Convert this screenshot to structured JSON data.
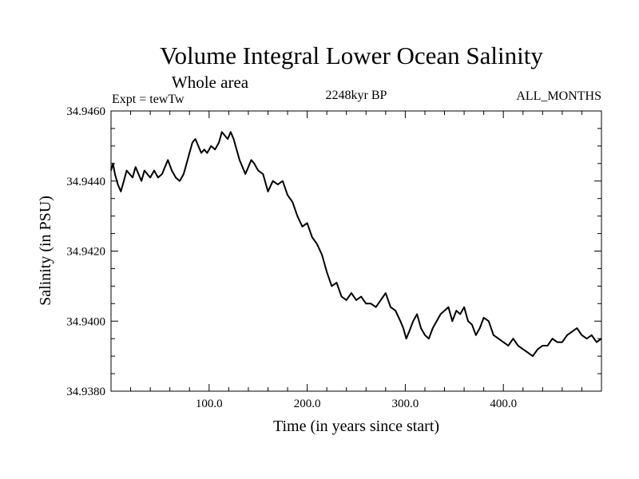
{
  "chart_data": {
    "type": "line",
    "title": "Volume Integral Lower Ocean Salinity",
    "subtitle": "Whole area",
    "header_left": "Expt = tewTw",
    "header_center": "2248kyr BP",
    "header_right": "ALL_MONTHS",
    "xlabel": "Time (in years since start)",
    "ylabel": "Salinity (in PSU)",
    "xlim": [
      0,
      500
    ],
    "ylim": [
      34.938,
      34.946
    ],
    "x_ticks": [
      {
        "value": 100,
        "label": "100.0"
      },
      {
        "value": 200,
        "label": "200.0"
      },
      {
        "value": 300,
        "label": "300.0"
      },
      {
        "value": 400,
        "label": "400.0"
      }
    ],
    "y_ticks": [
      {
        "value": 34.938,
        "label": "34.9380"
      },
      {
        "value": 34.94,
        "label": "34.9400"
      },
      {
        "value": 34.942,
        "label": "34.9420"
      },
      {
        "value": 34.944,
        "label": "34.9440"
      },
      {
        "value": 34.946,
        "label": "34.9460"
      }
    ],
    "grid": false,
    "series": [
      {
        "name": "Salinity",
        "color": "#000000",
        "x": [
          0,
          2,
          4,
          7,
          10,
          13,
          16,
          19,
          22,
          25,
          28,
          31,
          34,
          37,
          40,
          44,
          48,
          52,
          55,
          58,
          62,
          66,
          70,
          74,
          77,
          80,
          83,
          86,
          89,
          92,
          95,
          98,
          102,
          106,
          110,
          113,
          116,
          119,
          122,
          125,
          128,
          131,
          134,
          137,
          140,
          143,
          146,
          150,
          155,
          160,
          165,
          170,
          175,
          180,
          185,
          190,
          195,
          200,
          205,
          210,
          215,
          220,
          225,
          230,
          235,
          240,
          245,
          250,
          255,
          260,
          265,
          270,
          275,
          280,
          285,
          290,
          295,
          298,
          301,
          304,
          308,
          312,
          316,
          320,
          324,
          328,
          332,
          336,
          340,
          344,
          348,
          352,
          356,
          360,
          364,
          368,
          372,
          376,
          380,
          385,
          390,
          395,
          400,
          405,
          410,
          415,
          420,
          425,
          430,
          435,
          440,
          445,
          450,
          455,
          460,
          465,
          470,
          475,
          480,
          485,
          490,
          495,
          500
        ],
        "values": [
          34.9443,
          34.9445,
          34.9442,
          34.9439,
          34.9437,
          34.944,
          34.9443,
          34.9442,
          34.9441,
          34.9444,
          34.9442,
          34.944,
          34.9443,
          34.9442,
          34.9441,
          34.9443,
          34.9441,
          34.9442,
          34.9444,
          34.9446,
          34.9443,
          34.9441,
          34.944,
          34.9442,
          34.9445,
          34.9448,
          34.9451,
          34.9452,
          34.945,
          34.9448,
          34.9449,
          34.9448,
          34.945,
          34.9449,
          34.9451,
          34.9454,
          34.9453,
          34.9452,
          34.9454,
          34.9452,
          34.9449,
          34.9446,
          34.9444,
          34.9442,
          34.9444,
          34.9446,
          34.9445,
          34.9443,
          34.9442,
          34.9437,
          34.944,
          34.9439,
          34.944,
          34.9436,
          34.9434,
          34.943,
          34.9427,
          34.9428,
          34.9424,
          34.9422,
          34.9419,
          34.9414,
          34.941,
          34.9411,
          34.9407,
          34.9406,
          34.9408,
          34.9406,
          34.9407,
          34.9405,
          34.9405,
          34.9404,
          34.9406,
          34.9408,
          34.9404,
          34.9403,
          34.94,
          34.9398,
          34.9395,
          34.9397,
          34.94,
          34.9402,
          34.9398,
          34.9396,
          34.9395,
          34.9398,
          34.94,
          34.9402,
          34.9403,
          34.9404,
          34.94,
          34.9403,
          34.9402,
          34.9404,
          34.94,
          34.9399,
          34.9396,
          34.9398,
          34.9401,
          34.94,
          34.9396,
          34.9395,
          34.9394,
          34.9393,
          34.9395,
          34.9393,
          34.9392,
          34.9391,
          34.939,
          34.9392,
          34.9393,
          34.9393,
          34.9395,
          34.9394,
          34.9394,
          34.9396,
          34.9397,
          34.9398,
          34.9396,
          34.9395,
          34.9396,
          34.9394,
          34.9395
        ]
      }
    ]
  }
}
